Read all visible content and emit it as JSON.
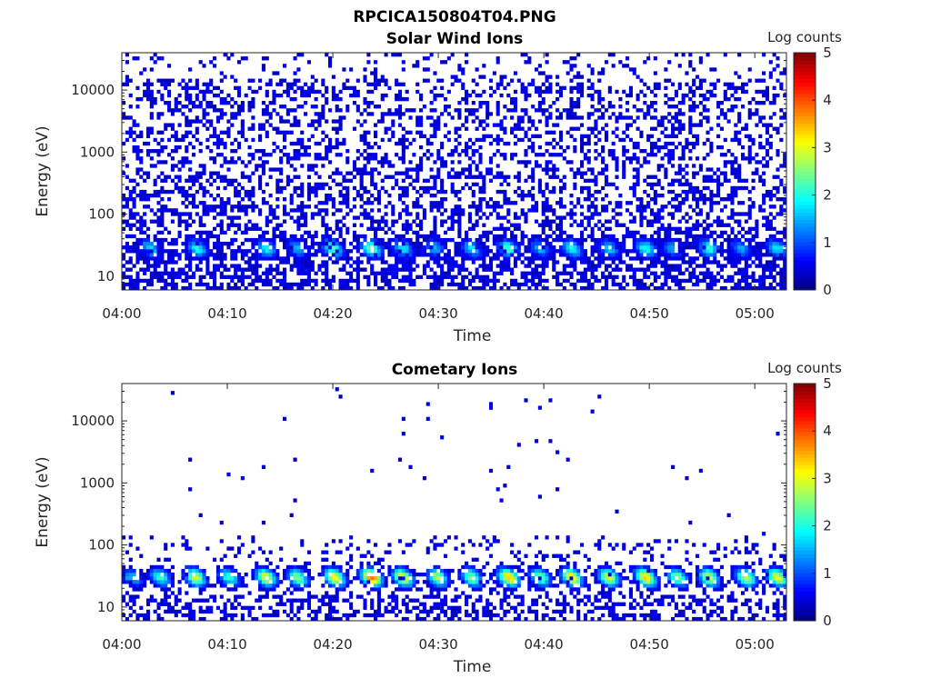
{
  "figure": {
    "title": "RPCICA150804T04.PNG"
  },
  "chart_data": [
    {
      "type": "heatmap",
      "title": "Solar Wind Ions",
      "xlabel": "Time",
      "ylabel": "Energy (eV)",
      "xticks": [
        "04:00",
        "04:10",
        "04:20",
        "04:30",
        "04:40",
        "04:50",
        "05:00"
      ],
      "xlim": [
        "04:00",
        "05:03"
      ],
      "yscale": "log",
      "yticks": [
        "10",
        "100",
        "1000",
        "10000"
      ],
      "ylim": [
        6,
        40000
      ],
      "colorbar": {
        "label": "Log counts",
        "ticks": [
          "0",
          "1",
          "2",
          "3",
          "4",
          "5"
        ],
        "range": [
          0,
          5
        ],
        "colormap": "jet"
      },
      "background_density": 0.42,
      "peaks": [
        {
          "time_min": 2.5,
          "log_counts": 1.6
        },
        {
          "time_min": 7.0,
          "log_counts": 1.8
        },
        {
          "time_min": 13.5,
          "log_counts": 1.7
        },
        {
          "time_min": 16.5,
          "log_counts": 1.3
        },
        {
          "time_min": 19.8,
          "log_counts": 2.2
        },
        {
          "time_min": 23.5,
          "log_counts": 2.4
        },
        {
          "time_min": 26.5,
          "log_counts": 1.7
        },
        {
          "time_min": 29.5,
          "log_counts": 1.4
        },
        {
          "time_min": 33.0,
          "log_counts": 1.6
        },
        {
          "time_min": 36.5,
          "log_counts": 2.1
        },
        {
          "time_min": 39.5,
          "log_counts": 1.4
        },
        {
          "time_min": 42.5,
          "log_counts": 1.9
        },
        {
          "time_min": 46.0,
          "log_counts": 1.5
        },
        {
          "time_min": 49.5,
          "log_counts": 1.9
        },
        {
          "time_min": 52.0,
          "log_counts": 1.3
        },
        {
          "time_min": 55.5,
          "log_counts": 1.9
        },
        {
          "time_min": 58.5,
          "log_counts": 1.3
        },
        {
          "time_min": 62.0,
          "log_counts": 1.7
        }
      ]
    },
    {
      "type": "heatmap",
      "title": "Cometary Ions",
      "xlabel": "Time",
      "ylabel": "Energy (eV)",
      "xticks": [
        "04:00",
        "04:10",
        "04:20",
        "04:30",
        "04:40",
        "04:50",
        "05:00"
      ],
      "xlim": [
        "04:00",
        "05:03"
      ],
      "yscale": "log",
      "yticks": [
        "10",
        "100",
        "1000",
        "10000"
      ],
      "ylim": [
        6,
        40000
      ],
      "colorbar": {
        "label": "Log counts",
        "ticks": [
          "0",
          "1",
          "2",
          "3",
          "4",
          "5"
        ],
        "range": [
          0,
          5
        ],
        "colormap": "jet"
      },
      "background_density": 0.02,
      "peaks": [
        {
          "time_min": 0.8,
          "log_counts": 1.5
        },
        {
          "time_min": 3.5,
          "log_counts": 2.0
        },
        {
          "time_min": 6.8,
          "log_counts": 2.8
        },
        {
          "time_min": 10.0,
          "log_counts": 2.0
        },
        {
          "time_min": 13.5,
          "log_counts": 2.9
        },
        {
          "time_min": 16.5,
          "log_counts": 2.5
        },
        {
          "time_min": 20.0,
          "log_counts": 3.1
        },
        {
          "time_min": 23.5,
          "log_counts": 3.8
        },
        {
          "time_min": 26.5,
          "log_counts": 3.0
        },
        {
          "time_min": 29.8,
          "log_counts": 2.5
        },
        {
          "time_min": 33.0,
          "log_counts": 2.5
        },
        {
          "time_min": 36.5,
          "log_counts": 3.3
        },
        {
          "time_min": 39.5,
          "log_counts": 2.3
        },
        {
          "time_min": 42.5,
          "log_counts": 3.3
        },
        {
          "time_min": 46.0,
          "log_counts": 2.9
        },
        {
          "time_min": 49.5,
          "log_counts": 3.2
        },
        {
          "time_min": 52.5,
          "log_counts": 2.4
        },
        {
          "time_min": 55.5,
          "log_counts": 2.8
        },
        {
          "time_min": 59.0,
          "log_counts": 2.7
        },
        {
          "time_min": 62.0,
          "log_counts": 3.0
        }
      ]
    }
  ]
}
